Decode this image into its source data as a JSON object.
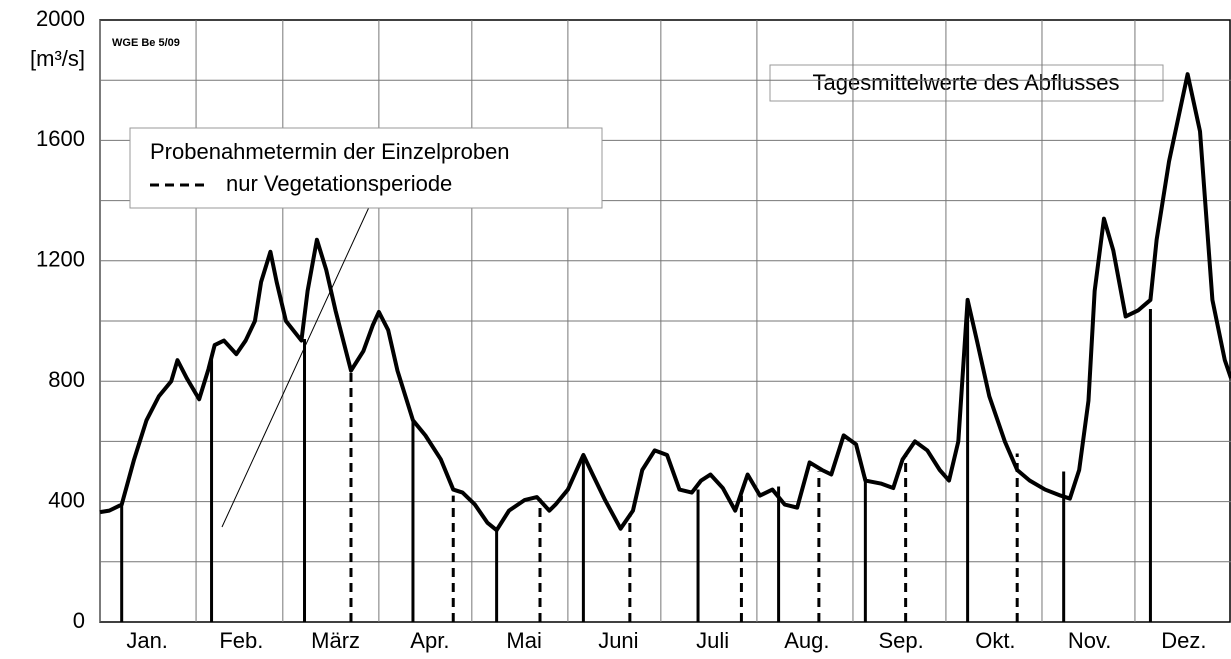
{
  "chart_data": {
    "type": "line",
    "note": "WGE Be 5/09",
    "ylabel": "[m³/s]",
    "series_label": "Tagesmittelwerte des Abflusses",
    "legend_title": "Probenahmetermin der Einzelproben",
    "legend_dashed": "nur Vegetationsperiode",
    "categories": [
      "Jan.",
      "Feb.",
      "März",
      "Apr.",
      "Mai",
      "Juni",
      "Juli",
      "Aug.",
      "Sep.",
      "Okt.",
      "Nov.",
      "Dez."
    ],
    "xlim": [
      0,
      365
    ],
    "xgrid": [
      0,
      31,
      59,
      90,
      120,
      151,
      181,
      212,
      243,
      273,
      304,
      334,
      365
    ],
    "ylim": [
      0,
      2000
    ],
    "yticks": [
      0,
      400,
      800,
      1200,
      1600,
      2000
    ],
    "ygrid": [
      200,
      400,
      600,
      800,
      1000,
      1200,
      1400,
      1600,
      1800
    ],
    "grid": true,
    "color": "#000000",
    "x": [
      0,
      3,
      7,
      11,
      15,
      19,
      23,
      25,
      28,
      32,
      35,
      37,
      40,
      44,
      47,
      50,
      52,
      55,
      57,
      60,
      65,
      67,
      70,
      73,
      76,
      81,
      85,
      88,
      90,
      93,
      96,
      101,
      105,
      110,
      114,
      117,
      121,
      125,
      128,
      132,
      137,
      141,
      145,
      147,
      151,
      156,
      159,
      163,
      168,
      172,
      175,
      179,
      183,
      187,
      191,
      194,
      197,
      201,
      205,
      209,
      213,
      217,
      221,
      225,
      229,
      233,
      236,
      240,
      244,
      247,
      252,
      256,
      259,
      263,
      267,
      271,
      274,
      277,
      280,
      283,
      287,
      292,
      296,
      300,
      305,
      310,
      313,
      316,
      319,
      321,
      324,
      327,
      331,
      335,
      339,
      341,
      345,
      351,
      355,
      359,
      363,
      365
    ],
    "values": [
      365,
      370,
      390,
      540,
      670,
      750,
      800,
      870,
      810,
      740,
      840,
      920,
      935,
      890,
      935,
      1000,
      1130,
      1230,
      1130,
      1000,
      935,
      1100,
      1270,
      1170,
      1035,
      835,
      900,
      985,
      1030,
      970,
      835,
      670,
      620,
      540,
      440,
      430,
      390,
      330,
      305,
      370,
      405,
      415,
      370,
      390,
      440,
      555,
      490,
      405,
      310,
      370,
      505,
      570,
      555,
      440,
      430,
      470,
      490,
      445,
      370,
      490,
      420,
      440,
      390,
      380,
      530,
      505,
      490,
      620,
      590,
      470,
      460,
      445,
      540,
      600,
      570,
      505,
      470,
      600,
      1070,
      935,
      750,
      600,
      505,
      470,
      440,
      420,
      410,
      505,
      735,
      1100,
      1340,
      1235,
      1015,
      1035,
      1070,
      1270,
      1530,
      1820,
      1630,
      1070,
      870,
      810
    ],
    "samples_x": [
      7,
      36,
      66,
      101,
      128,
      156,
      193,
      219,
      247,
      280,
      311,
      339
    ],
    "samples_values": [
      390,
      880,
      940,
      670,
      305,
      540,
      440,
      450,
      480,
      1060,
      500,
      1040
    ],
    "vegetation_x": [
      81,
      114,
      142,
      171,
      207,
      232,
      260,
      296
    ],
    "vegetation_values": [
      830,
      420,
      410,
      360,
      420,
      500,
      560,
      560
    ]
  }
}
